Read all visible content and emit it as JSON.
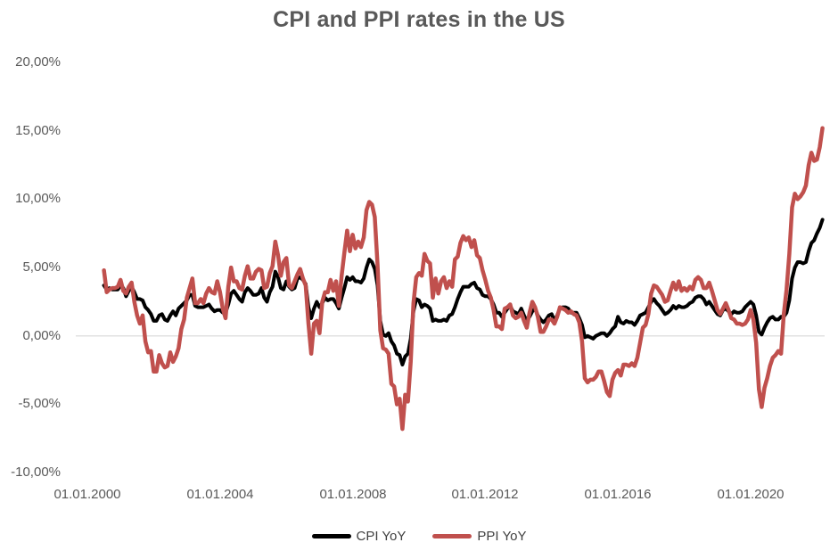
{
  "background_color": "#FFFFFF",
  "chart_data": {
    "type": "line",
    "title": "CPI and PPI rates in the US",
    "title_color": "#595959",
    "frequency": "monthly",
    "x_start_year": 2000,
    "x_start_month": 7,
    "x_axis": {
      "tick_labels": [
        "01.01.2000",
        "01.01.2004",
        "01.01.2008",
        "01.01.2012",
        "01.01.2016",
        "01.01.2020"
      ],
      "tick_years": [
        2000,
        2004,
        2008,
        2012,
        2016,
        2020
      ]
    },
    "y_axis": {
      "tick_labels": [
        "20,00%",
        "15,00%",
        "10,00%",
        "5,00%",
        "0,00%",
        "-5,00%",
        "-10,00%"
      ],
      "tick_values": [
        20,
        15,
        10,
        5,
        0,
        -5,
        -10
      ],
      "min": -10,
      "max": 20,
      "unit": "percent"
    },
    "gridline": {
      "zero_line_only": true,
      "color": "#D9D9D9"
    },
    "legend_position": "bottom",
    "series": [
      {
        "name": "CPI YoY",
        "color": "#000000",
        "line_width": 4,
        "values": [
          3.7,
          3.4,
          3.5,
          3.4,
          3.4,
          3.4,
          3.7,
          3.5,
          2.9,
          3.3,
          3.6,
          3.2,
          2.7,
          2.7,
          2.6,
          2.1,
          1.9,
          1.6,
          1.1,
          1.1,
          1.5,
          1.6,
          1.2,
          1.1,
          1.5,
          1.8,
          1.5,
          2.0,
          2.2,
          2.4,
          2.6,
          3.0,
          3.0,
          2.2,
          2.1,
          2.1,
          2.1,
          2.2,
          2.3,
          2.0,
          1.8,
          1.9,
          1.9,
          1.7,
          1.7,
          2.3,
          3.1,
          3.3,
          3.0,
          2.7,
          2.5,
          3.2,
          3.5,
          3.3,
          3.0,
          3.0,
          3.1,
          3.5,
          2.8,
          2.5,
          3.2,
          3.6,
          4.7,
          4.3,
          3.5,
          3.4,
          4.0,
          3.6,
          3.4,
          3.5,
          4.2,
          4.3,
          4.1,
          3.8,
          2.1,
          1.3,
          2.0,
          2.5,
          2.1,
          2.4,
          2.8,
          2.6,
          2.7,
          2.7,
          2.4,
          2.0,
          2.8,
          3.5,
          4.3,
          4.1,
          4.3,
          4.0,
          4.0,
          3.9,
          4.2,
          5.0,
          5.6,
          5.4,
          4.9,
          3.7,
          1.1,
          0.1,
          0.0,
          0.2,
          -0.4,
          -0.7,
          -1.3,
          -1.4,
          -2.1,
          -1.5,
          -1.3,
          -0.2,
          1.8,
          2.7,
          2.6,
          2.1,
          2.3,
          2.2,
          2.0,
          1.1,
          1.2,
          1.1,
          1.1,
          1.2,
          1.1,
          1.5,
          1.6,
          2.1,
          2.7,
          3.2,
          3.6,
          3.6,
          3.6,
          3.8,
          3.9,
          3.5,
          3.4,
          3.0,
          2.9,
          2.9,
          2.7,
          2.3,
          1.7,
          1.7,
          1.4,
          1.7,
          2.0,
          2.2,
          1.8,
          1.7,
          1.6,
          2.0,
          1.5,
          1.1,
          1.4,
          1.8,
          2.0,
          1.5,
          1.2,
          1.0,
          1.2,
          1.5,
          1.6,
          1.1,
          1.5,
          2.0,
          2.1,
          2.1,
          2.0,
          1.7,
          1.7,
          1.7,
          1.3,
          0.8,
          -0.1,
          0.0,
          -0.1,
          -0.2,
          0.0,
          0.1,
          0.2,
          0.2,
          0.0,
          0.2,
          0.5,
          0.7,
          1.4,
          1.0,
          0.9,
          1.1,
          1.0,
          1.0,
          0.8,
          1.1,
          1.5,
          1.6,
          1.7,
          2.1,
          2.5,
          2.7,
          2.4,
          2.2,
          1.9,
          1.6,
          1.7,
          1.9,
          2.2,
          2.0,
          2.2,
          2.1,
          2.1,
          2.2,
          2.4,
          2.5,
          2.8,
          2.9,
          2.9,
          2.7,
          2.3,
          2.5,
          2.2,
          1.9,
          1.6,
          1.5,
          1.9,
          2.0,
          1.8,
          1.6,
          1.8,
          1.7,
          1.7,
          1.8,
          2.1,
          2.3,
          2.5,
          2.3,
          1.5,
          0.3,
          0.1,
          0.6,
          1.0,
          1.3,
          1.4,
          1.2,
          1.2,
          1.4,
          1.4,
          1.7,
          2.6,
          4.2,
          5.0,
          5.4,
          5.4,
          5.3,
          5.4,
          6.2,
          6.8,
          7.0,
          7.5,
          7.9,
          8.5
        ]
      },
      {
        "name": "PPI YoY",
        "color": "#C0504D",
        "line_width": 4.5,
        "values": [
          4.8,
          3.2,
          3.4,
          3.5,
          3.5,
          3.6,
          4.1,
          3.3,
          3.1,
          3.6,
          3.9,
          2.5,
          1.5,
          0.9,
          1.5,
          -0.4,
          -1.2,
          -1.1,
          -2.6,
          -2.6,
          -1.4,
          -2.0,
          -2.3,
          -2.2,
          -1.2,
          -1.9,
          -1.5,
          -0.9,
          0.5,
          1.2,
          2.8,
          3.5,
          4.2,
          2.4,
          2.4,
          2.7,
          2.4,
          3.1,
          3.5,
          3.2,
          3.1,
          4.0,
          3.2,
          2.0,
          1.3,
          3.6,
          5.0,
          4.0,
          4.0,
          3.5,
          3.4,
          4.4,
          5.1,
          4.2,
          4.2,
          4.7,
          4.9,
          4.8,
          3.5,
          3.6,
          4.6,
          5.1,
          6.9,
          5.9,
          4.4,
          5.4,
          5.7,
          3.7,
          3.5,
          4.0,
          4.5,
          4.9,
          4.2,
          3.7,
          0.9,
          -1.3,
          0.9,
          1.1,
          0.2,
          2.5,
          3.2,
          3.2,
          4.1,
          3.3,
          4.0,
          2.2,
          4.4,
          6.1,
          7.7,
          6.2,
          7.4,
          6.4,
          6.9,
          6.5,
          7.2,
          9.2,
          9.8,
          9.6,
          8.7,
          5.2,
          0.4,
          -0.9,
          -1.0,
          -1.3,
          -3.5,
          -3.7,
          -5.0,
          -4.6,
          -6.8,
          -4.3,
          -4.8,
          -1.9,
          2.4,
          4.3,
          4.6,
          4.4,
          6.0,
          5.5,
          5.3,
          2.8,
          4.2,
          3.1,
          4.0,
          4.3,
          3.5,
          4.0,
          3.6,
          5.6,
          5.8,
          6.8,
          7.3,
          7.0,
          7.2,
          6.5,
          7.0,
          5.9,
          5.7,
          4.8,
          4.1,
          3.3,
          2.8,
          1.9,
          0.7,
          0.7,
          0.5,
          2.0,
          2.1,
          2.3,
          1.5,
          1.3,
          1.4,
          1.7,
          1.1,
          0.6,
          1.7,
          2.5,
          2.1,
          1.4,
          0.3,
          0.3,
          0.7,
          1.2,
          1.2,
          0.9,
          1.4,
          2.1,
          2.0,
          1.9,
          1.7,
          1.8,
          1.6,
          1.5,
          1.0,
          -0.4,
          -3.1,
          -3.4,
          -3.2,
          -3.2,
          -3.0,
          -2.6,
          -2.6,
          -3.3,
          -4.1,
          -4.4,
          -3.2,
          -2.7,
          -2.5,
          -2.9,
          -2.1,
          -2.1,
          -2.2,
          -2.0,
          -2.2,
          -1.6,
          -0.5,
          0.6,
          0.8,
          1.6,
          3.1,
          3.7,
          3.6,
          3.3,
          3.0,
          2.5,
          2.6,
          3.3,
          3.9,
          3.4,
          4.0,
          3.3,
          3.5,
          3.3,
          3.6,
          3.4,
          4.1,
          4.3,
          4.1,
          3.5,
          3.5,
          3.9,
          3.3,
          2.6,
          1.9,
          1.6,
          2.0,
          2.4,
          1.9,
          1.3,
          1.2,
          0.9,
          0.9,
          0.8,
          0.9,
          1.2,
          1.9,
          1.2,
          -0.5,
          -3.9,
          -5.2,
          -3.8,
          -3.1,
          -2.2,
          -1.6,
          -1.4,
          -1.1,
          -1.3,
          1.6,
          3.4,
          6.0,
          9.4,
          10.4,
          10.0,
          10.2,
          10.5,
          11.0,
          12.5,
          13.4,
          12.8,
          12.9,
          13.8,
          15.2
        ]
      }
    ]
  }
}
